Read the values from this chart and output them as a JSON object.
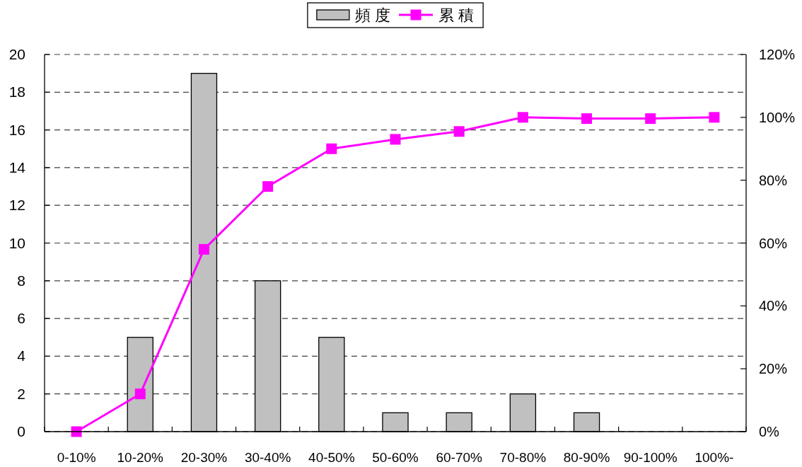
{
  "chart_data": {
    "type": "bar",
    "categories": [
      "0-10%",
      "10-20%",
      "20-30%",
      "30-40%",
      "40-50%",
      "50-60%",
      "60-70%",
      "70-80%",
      "80-90%",
      "90-100%",
      "100%-"
    ],
    "series": [
      {
        "name": "頻 度",
        "color": "#c0c0c0",
        "values": [
          0,
          5,
          19,
          8,
          5,
          1,
          1,
          2,
          1,
          0,
          0
        ]
      },
      {
        "name": "累 積",
        "type": "line",
        "axis": "y2",
        "color": "#ff00ff",
        "values": [
          0,
          12,
          58,
          78,
          90,
          93,
          95.5,
          100,
          99.6,
          99.6,
          100
        ]
      }
    ],
    "ylim": [
      0,
      20
    ],
    "yticks": [
      0,
      2,
      4,
      6,
      8,
      10,
      12,
      14,
      16,
      18,
      20
    ],
    "y2lim": [
      0,
      120
    ],
    "y2ticks": [
      {
        "value": 0,
        "label": "0%"
      },
      {
        "value": 20,
        "label": "20%"
      },
      {
        "value": 40,
        "label": "40%"
      },
      {
        "value": 60,
        "label": "60%"
      },
      {
        "value": 80,
        "label": "80%"
      },
      {
        "value": 100,
        "label": "100%"
      },
      {
        "value": 120,
        "label": "120%"
      }
    ],
    "grid": "y",
    "legend": "top",
    "marker": "square"
  }
}
